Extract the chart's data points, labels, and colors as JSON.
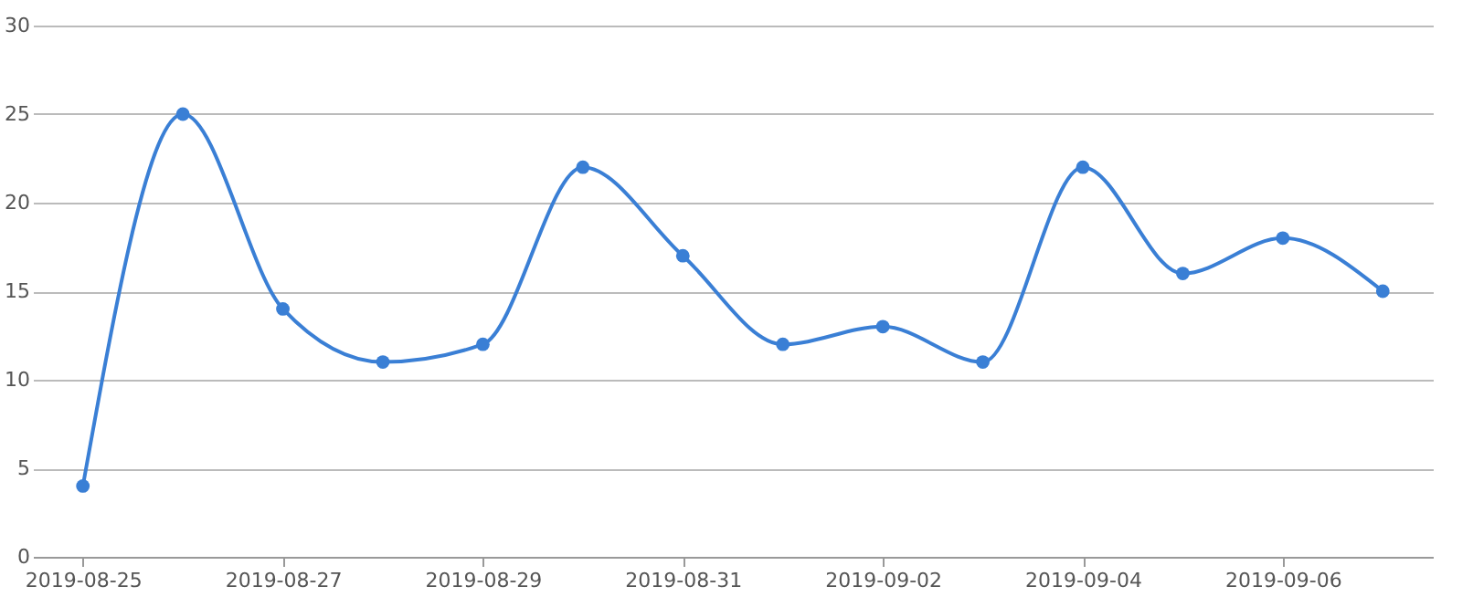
{
  "chart_data": {
    "type": "line",
    "x": [
      "2019-08-25",
      "2019-08-26",
      "2019-08-27",
      "2019-08-28",
      "2019-08-29",
      "2019-08-30",
      "2019-08-31",
      "2019-09-01",
      "2019-09-02",
      "2019-09-03",
      "2019-09-04",
      "2019-09-05",
      "2019-09-06",
      "2019-09-07"
    ],
    "series": [
      {
        "color": "#3a7fd5",
        "values": [
          4,
          25,
          14,
          11,
          12,
          22,
          17,
          12,
          13,
          11,
          22,
          16,
          18,
          15
        ]
      }
    ],
    "xlim": [
      "2019-08-24T12:00",
      "2019-09-07T12:00"
    ],
    "xticks": [
      "2019-08-25",
      "2019-08-27",
      "2019-08-29",
      "2019-08-31",
      "2019-09-02",
      "2019-09-04",
      "2019-09-06"
    ],
    "ylim": [
      0,
      30
    ],
    "yticks": [
      0,
      5,
      10,
      15,
      20,
      25,
      30
    ],
    "grid": "y",
    "marker": "circle",
    "line_style": "solid"
  }
}
